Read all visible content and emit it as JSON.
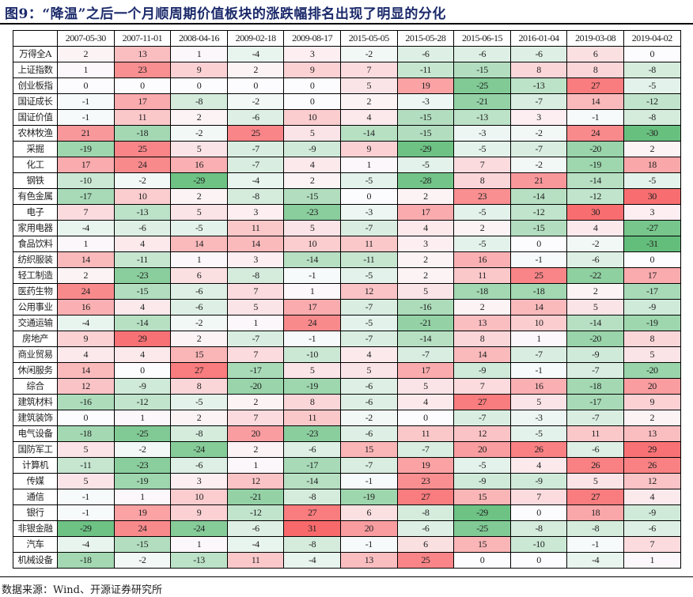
{
  "title": "图9：“降温”之后一个月顺周期价值板块的涨跌幅排名出现了明显的分化",
  "source": "数据来源：Wind、开源证券研究所",
  "colors": {
    "positive_max": "#f8696b",
    "neutral": "#fcfcff",
    "negative_max": "#63be7b",
    "title": "#1b2a6b"
  },
  "chart_data": {
    "type": "heatmap",
    "title": "“降温”之后一个月顺周期价值板块的涨跌幅排名出现了明显的分化",
    "xlabel": "",
    "ylabel": "",
    "color_scale": {
      "min": -31,
      "mid": 0,
      "max": 31,
      "low_color": "#63be7b",
      "mid_color": "#fcfcff",
      "high_color": "#f8696b"
    },
    "columns": [
      "2007-05-30",
      "2007-11-01",
      "2008-04-16",
      "2009-02-18",
      "2009-08-17",
      "2015-05-05",
      "2015-05-28",
      "2015-06-15",
      "2016-01-04",
      "2019-03-08",
      "2019-04-02"
    ],
    "rows": [
      {
        "name": "万得全A",
        "values": [
          2,
          13,
          1,
          -4,
          3,
          -2,
          -6,
          -6,
          -6,
          6,
          0
        ]
      },
      {
        "name": "上证指数",
        "values": [
          1,
          23,
          9,
          2,
          9,
          7,
          -11,
          -15,
          8,
          8,
          -8
        ]
      },
      {
        "name": "创业板指",
        "values": [
          0,
          0,
          0,
          0,
          0,
          5,
          19,
          -25,
          -13,
          27,
          -5
        ]
      },
      {
        "name": "国证成长",
        "values": [
          -1,
          17,
          -8,
          -2,
          0,
          2,
          -3,
          -21,
          -7,
          14,
          -12
        ]
      },
      {
        "name": "国证价值",
        "values": [
          -1,
          11,
          2,
          -6,
          10,
          4,
          -15,
          -13,
          3,
          -1,
          -8
        ]
      },
      {
        "name": "农林牧渔",
        "values": [
          21,
          -18,
          -2,
          25,
          5,
          -14,
          -15,
          -3,
          -2,
          24,
          -30
        ]
      },
      {
        "name": "采掘",
        "values": [
          -19,
          25,
          5,
          -7,
          -9,
          9,
          -29,
          -5,
          -7,
          -20,
          2
        ]
      },
      {
        "name": "化工",
        "values": [
          17,
          24,
          16,
          -7,
          4,
          1,
          -5,
          7,
          -2,
          -19,
          18
        ]
      },
      {
        "name": "钢铁",
        "values": [
          -10,
          -2,
          -29,
          -4,
          2,
          -5,
          -28,
          8,
          21,
          -14,
          -5
        ]
      },
      {
        "name": "有色金属",
        "values": [
          -17,
          10,
          2,
          -8,
          -15,
          0,
          2,
          23,
          -14,
          -12,
          30
        ]
      },
      {
        "name": "电子",
        "values": [
          7,
          -13,
          5,
          3,
          -23,
          -3,
          17,
          -5,
          -12,
          30,
          3
        ]
      },
      {
        "name": "家用电器",
        "values": [
          -4,
          -6,
          -5,
          11,
          5,
          -7,
          4,
          2,
          -15,
          4,
          -27
        ]
      },
      {
        "name": "食品饮料",
        "values": [
          1,
          4,
          14,
          14,
          10,
          11,
          3,
          -5,
          0,
          -2,
          -31
        ]
      },
      {
        "name": "纺织服装",
        "values": [
          14,
          -11,
          1,
          3,
          -14,
          -11,
          2,
          16,
          -1,
          -6,
          0
        ]
      },
      {
        "name": "轻工制造",
        "values": [
          2,
          -23,
          6,
          -8,
          -1,
          -5,
          2,
          11,
          25,
          -22,
          17
        ]
      },
      {
        "name": "医药生物",
        "values": [
          24,
          -15,
          -6,
          7,
          1,
          12,
          5,
          -18,
          -18,
          2,
          -17
        ]
      },
      {
        "name": "公用事业",
        "values": [
          16,
          4,
          -6,
          5,
          17,
          -7,
          -16,
          2,
          14,
          5,
          -9
        ]
      },
      {
        "name": "交通运输",
        "values": [
          -4,
          -14,
          -2,
          1,
          24,
          -5,
          -21,
          13,
          10,
          -14,
          -19
        ]
      },
      {
        "name": "房地产",
        "values": [
          9,
          29,
          2,
          -7,
          -1,
          -7,
          -14,
          8,
          1,
          -20,
          8
        ]
      },
      {
        "name": "商业贸易",
        "values": [
          4,
          4,
          15,
          7,
          -10,
          4,
          -7,
          14,
          -7,
          -9,
          5
        ]
      },
      {
        "name": "休闲服务",
        "values": [
          14,
          0,
          27,
          -17,
          5,
          5,
          17,
          -9,
          -1,
          -7,
          -20
        ]
      },
      {
        "name": "综合",
        "values": [
          12,
          -9,
          8,
          -20,
          -19,
          -6,
          5,
          7,
          16,
          -18,
          20
        ]
      },
      {
        "name": "建筑材料",
        "values": [
          -16,
          -12,
          -5,
          2,
          8,
          -6,
          4,
          27,
          5,
          -17,
          9
        ]
      },
      {
        "name": "建筑装饰",
        "values": [
          0,
          1,
          2,
          7,
          11,
          -2,
          0,
          -7,
          -3,
          -7,
          2
        ]
      },
      {
        "name": "电气设备",
        "values": [
          -18,
          -25,
          -8,
          20,
          -23,
          -6,
          11,
          12,
          -5,
          11,
          13
        ]
      },
      {
        "name": "国防军工",
        "values": [
          5,
          -2,
          -24,
          2,
          -6,
          15,
          -7,
          20,
          26,
          -6,
          29
        ]
      },
      {
        "name": "计算机",
        "values": [
          -11,
          -23,
          -6,
          1,
          -17,
          -7,
          19,
          -5,
          4,
          26,
          26
        ]
      },
      {
        "name": "传媒",
        "values": [
          5,
          -19,
          3,
          12,
          -14,
          -1,
          23,
          -9,
          -9,
          5,
          12
        ]
      },
      {
        "name": "通信",
        "values": [
          -1,
          1,
          10,
          -21,
          -8,
          -19,
          27,
          15,
          7,
          27,
          4
        ]
      },
      {
        "name": "银行",
        "values": [
          -1,
          19,
          9,
          -12,
          27,
          6,
          -8,
          -29,
          0,
          18,
          -9
        ]
      },
      {
        "name": "非银金融",
        "values": [
          -29,
          24,
          -24,
          -6,
          31,
          20,
          -6,
          -25,
          -8,
          -8,
          -6
        ]
      },
      {
        "name": "汽车",
        "values": [
          -4,
          -15,
          1,
          -4,
          -8,
          -1,
          6,
          15,
          -10,
          -1,
          7
        ]
      },
      {
        "name": "机械设备",
        "values": [
          -18,
          -2,
          -13,
          11,
          -4,
          13,
          25,
          0,
          0,
          -4,
          1
        ]
      }
    ]
  }
}
